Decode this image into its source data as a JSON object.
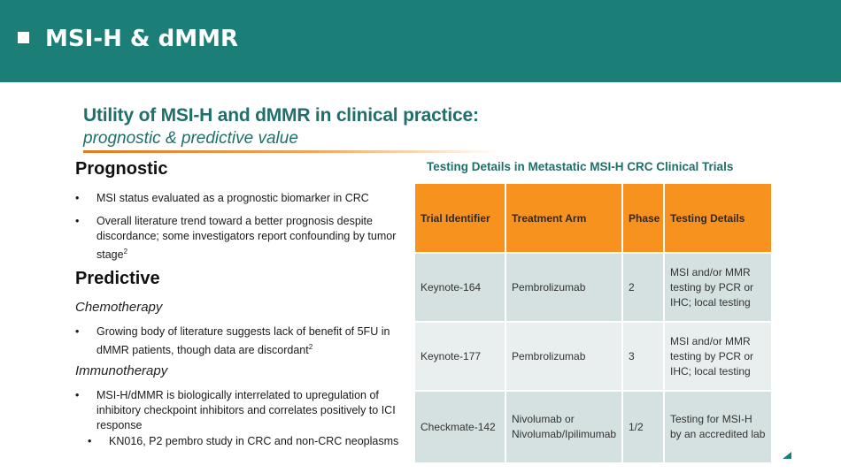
{
  "header": {
    "title": "MSI-H & dMMR"
  },
  "slide": {
    "title": "Utility of MSI-H and dMMR in clinical practice:",
    "subtitle": "prognostic & predictive value"
  },
  "prognostic": {
    "heading": "Prognostic",
    "bullets": [
      "MSI status evaluated as a prognostic biomarker in CRC",
      "Overall literature trend toward a better prognosis despite discordance; some investigators report confounding by tumor stage"
    ],
    "bullet2_sup": "2"
  },
  "predictive": {
    "heading": "Predictive",
    "chemo_heading": "Chemotherapy",
    "chemo_bullet": "Growing body of literature suggests lack of benefit of 5FU in dMMR patients, though data are discordant",
    "chemo_sup": "2",
    "immuno_heading": "Immunotherapy",
    "immuno_bullet": "MSI-H/dMMR is biologically interrelated to upregulation of inhibitory checkpoint inhibitors and correlates positively to ICI response",
    "immuno_sub_bullet": "KN016, P2 pembro study in CRC and non-CRC neoplasms"
  },
  "table": {
    "title": "Testing Details in Metastatic MSI-H CRC Clinical Trials",
    "headers": [
      "Trial Identifier",
      "Treatment Arm",
      "Phase",
      "Testing Details"
    ],
    "rows": [
      [
        "Keynote-164",
        "Pembrolizumab",
        "2",
        "MSI and/or MMR testing by PCR or IHC; local testing"
      ],
      [
        "Keynote-177",
        "Pembrolizumab",
        "3",
        "MSI and/or MMR testing by PCR or IHC; local testing"
      ],
      [
        "Checkmate-142",
        "Nivolumab or Nivolumab/Ipilimumab",
        "1/2",
        "Testing for MSI-H by an accredited lab"
      ]
    ]
  },
  "colors": {
    "header_bg": "#1b7f77",
    "title_teal": "#1f6f6a",
    "table_header_orange": "#f7921e",
    "row_dark": "#d5e1e0",
    "row_light": "#e9efee"
  }
}
